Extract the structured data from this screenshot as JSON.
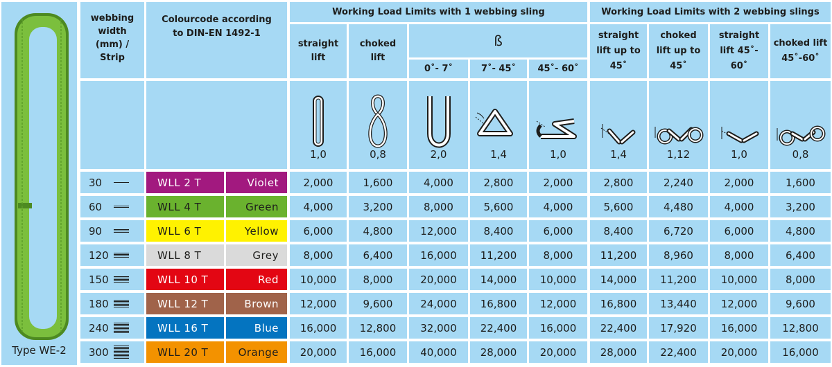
{
  "sling_type_label": "Type WE-2",
  "header": {
    "width": "webbing width (mm) / Strip",
    "colour": "Colourcode according to DIN-EN 1492-1",
    "group1": "Working Load Limits with 1 webbing sling",
    "group2": "Working Load Limits with 2 webbing slings",
    "straight_lift": "straight lift",
    "choked_lift": "choked lift",
    "beta": "ß",
    "ang1": "0˚- 7˚",
    "ang2": "7˚- 45˚",
    "ang3": "45˚- 60˚",
    "g2c1": "straight lift up to 45˚",
    "g2c2": "choked lift up to 45˚",
    "g2c3": "straight lift 45˚- 60˚",
    "g2c4": "choked lift 45˚-60˚"
  },
  "factors": [
    "1,0",
    "0,8",
    "2,0",
    "1,4",
    "1,0",
    "1,4",
    "1,12",
    "1,0",
    "0,8"
  ],
  "rows": [
    {
      "width": "30",
      "strips": 1,
      "wll": "WLL  2  T",
      "colour": "Violet",
      "bg": "#a2197f",
      "fg": "#ffffff",
      "values": [
        "2,000",
        "1,600",
        "4,000",
        "2,800",
        "2,000",
        "2,800",
        "2,240",
        "2,000",
        "1,600"
      ]
    },
    {
      "width": "60",
      "strips": 2,
      "wll": "WLL  4  T",
      "colour": "Green",
      "bg": "#6ab22e",
      "fg": "#1d1d1b",
      "values": [
        "4,000",
        "3,200",
        "8,000",
        "5,600",
        "4,000",
        "5,600",
        "4,480",
        "4,000",
        "3,200"
      ]
    },
    {
      "width": "90",
      "strips": 3,
      "wll": "WLL  6  T",
      "colour": "Yellow",
      "bg": "#fff200",
      "fg": "#1d1d1b",
      "values": [
        "6,000",
        "4,800",
        "12,000",
        "8,400",
        "6,000",
        "8,400",
        "6,720",
        "6,000",
        "4,800"
      ]
    },
    {
      "width": "120",
      "strips": 4,
      "wll": "WLL  8  T",
      "colour": "Grey",
      "bg": "#dadada",
      "fg": "#1d1d1b",
      "values": [
        "8,000",
        "6,400",
        "16,000",
        "11,200",
        "8,000",
        "11,200",
        "8,960",
        "8,000",
        "6,400"
      ]
    },
    {
      "width": "150",
      "strips": 5,
      "wll": "WLL 10  T",
      "colour": "Red",
      "bg": "#e30613",
      "fg": "#ffffff",
      "values": [
        "10,000",
        "8,000",
        "20,000",
        "14,000",
        "10,000",
        "14,000",
        "11,200",
        "10,000",
        "8,000"
      ]
    },
    {
      "width": "180",
      "strips": 6,
      "wll": "WLL 12  T",
      "colour": "Brown",
      "bg": "#a0634a",
      "fg": "#ffffff",
      "values": [
        "12,000",
        "9,600",
        "24,000",
        "16,800",
        "12,000",
        "16,800",
        "13,440",
        "12,000",
        "9,600"
      ]
    },
    {
      "width": "240",
      "strips": 8,
      "wll": "WLL 16  T",
      "colour": "Blue",
      "bg": "#0474c0",
      "fg": "#ffffff",
      "values": [
        "16,000",
        "12,800",
        "32,000",
        "22,400",
        "16,000",
        "22,400",
        "17,920",
        "16,000",
        "12,800"
      ]
    },
    {
      "width": "300",
      "strips": 10,
      "wll": "WLL 20  T",
      "colour": "Orange",
      "bg": "#f39200",
      "fg": "#1d1d1b",
      "values": [
        "20,000",
        "16,000",
        "40,000",
        "28,000",
        "20,000",
        "28,000",
        "22,400",
        "20,000",
        "16,000"
      ]
    }
  ],
  "icons": [
    "straight-lift-icon",
    "choked-lift-icon",
    "basket-0-7-icon",
    "basket-7-45-icon",
    "basket-45-60-icon",
    "two-straight-45-icon",
    "two-choked-45-icon",
    "two-straight-45-60-icon",
    "two-choked-45-60-icon"
  ]
}
